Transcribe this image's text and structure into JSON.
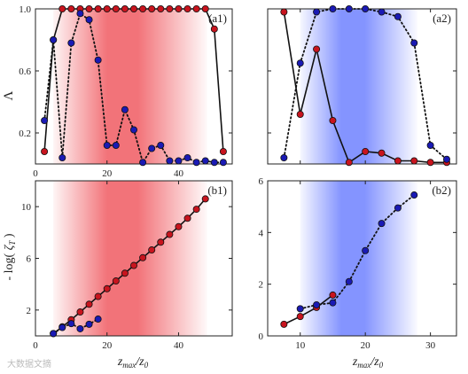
{
  "chart_data": [
    {
      "id": "a1",
      "type": "line",
      "panel_label": "(a1)",
      "ylabel": "Λ",
      "xlim": [
        0,
        55
      ],
      "ylim": [
        0,
        1.0
      ],
      "xticks": [
        0,
        20,
        40
      ],
      "yticks": [
        0.2,
        0.6,
        1.0
      ],
      "ytick_labels": [
        "0.2",
        "0.6",
        "1.0"
      ],
      "show_xtick_labels": true,
      "show_ytick_labels": true,
      "shade": {
        "color": "#e8000b",
        "from": 5,
        "to": 48
      },
      "series": [
        {
          "color": "#c8141e",
          "style": "solid",
          "x": [
            2.5,
            5,
            7.5,
            10,
            12.5,
            15,
            17.5,
            20,
            22.5,
            25,
            27.5,
            30,
            32.5,
            35,
            37.5,
            40,
            42.5,
            45,
            47.5,
            50,
            52.5
          ],
          "y": [
            0.08,
            0.8,
            1.0,
            1.0,
            1.0,
            1.0,
            1.0,
            1.0,
            1.0,
            1.0,
            1.0,
            1.0,
            1.0,
            1.0,
            1.0,
            1.0,
            1.0,
            1.0,
            1.0,
            0.87,
            0.08
          ]
        },
        {
          "color": "#1a1ab4",
          "style": "dotted",
          "x": [
            2.5,
            5,
            7.5,
            10,
            12.5,
            15,
            17.5,
            20,
            22.5,
            25,
            27.5,
            30,
            32.5,
            35,
            37.5,
            40,
            42.5,
            45,
            47.5,
            50,
            52.5
          ],
          "y": [
            0.28,
            0.8,
            0.04,
            0.78,
            0.97,
            0.93,
            0.67,
            0.12,
            0.12,
            0.35,
            0.22,
            0.01,
            0.1,
            0.12,
            0.02,
            0.02,
            0.04,
            0.01,
            0.02,
            0.01,
            0.01
          ]
        }
      ]
    },
    {
      "id": "a2",
      "type": "line",
      "panel_label": "(a2)",
      "ylabel": "",
      "xlim": [
        5,
        34
      ],
      "ylim": [
        0,
        1.0
      ],
      "xticks": [
        10,
        20,
        30
      ],
      "yticks": [
        0.2,
        0.6,
        1.0
      ],
      "ytick_labels": [
        "",
        "",
        ""
      ],
      "show_xtick_labels": false,
      "show_ytick_labels": false,
      "shade": {
        "color": "#1f3cff",
        "from": 10,
        "to": 28
      },
      "series": [
        {
          "color": "#c8141e",
          "style": "solid",
          "x": [
            7.5,
            10,
            12.5,
            15,
            17.5,
            20,
            22.5,
            25,
            27.5,
            30,
            32.5
          ],
          "y": [
            0.98,
            0.32,
            0.74,
            0.28,
            0.01,
            0.08,
            0.07,
            0.02,
            0.02,
            0.01,
            0.01
          ]
        },
        {
          "color": "#1a1ab4",
          "style": "dotted",
          "x": [
            7.5,
            10,
            12.5,
            15,
            17.5,
            20,
            22.5,
            25,
            27.5,
            30,
            32.5
          ],
          "y": [
            0.04,
            0.65,
            0.98,
            1.0,
            1.0,
            1.0,
            0.98,
            0.95,
            0.78,
            0.12,
            0.03
          ]
        }
      ]
    },
    {
      "id": "b1",
      "type": "line",
      "panel_label": "(b1)",
      "ylabel": "- log( ζT )",
      "xlim": [
        0,
        55
      ],
      "ylim": [
        0,
        12
      ],
      "xticks": [
        0,
        20,
        40
      ],
      "yticks": [
        2,
        6,
        10
      ],
      "ytick_labels": [
        "2",
        "6",
        "10"
      ],
      "show_xtick_labels": true,
      "show_ytick_labels": true,
      "xlabel": "z max / z 0",
      "shade": {
        "color": "#e8000b",
        "from": 5,
        "to": 48
      },
      "series": [
        {
          "color": "#c8141e",
          "style": "solid",
          "x": [
            5,
            7.5,
            10,
            12.5,
            15,
            17.5,
            20,
            22.5,
            25,
            27.5,
            30,
            32.5,
            35,
            37.5,
            40,
            42.5,
            45,
            47.5
          ],
          "y": [
            0.18,
            0.7,
            1.25,
            1.85,
            2.45,
            3.05,
            3.65,
            4.25,
            4.85,
            5.45,
            6.05,
            6.65,
            7.25,
            7.85,
            8.45,
            9.1,
            9.8,
            10.6
          ]
        },
        {
          "color": "#1a1ab4",
          "style": "dotted",
          "x": [
            5,
            7.5,
            10,
            12.5,
            15,
            17.5
          ],
          "y": [
            0.18,
            0.65,
            0.95,
            0.55,
            0.9,
            1.3
          ]
        }
      ]
    },
    {
      "id": "b2",
      "type": "line",
      "panel_label": "(b2)",
      "ylabel": "",
      "xlim": [
        5,
        34
      ],
      "ylim": [
        0,
        6
      ],
      "xticks": [
        10,
        20,
        30
      ],
      "yticks": [
        0,
        2,
        4,
        6
      ],
      "ytick_labels": [
        "0",
        "2",
        "4",
        "6"
      ],
      "show_xtick_labels": true,
      "show_ytick_labels": true,
      "xlabel": "z max / z 0",
      "shade": {
        "color": "#1f3cff",
        "from": 10,
        "to": 28
      },
      "series": [
        {
          "color": "#c8141e",
          "style": "solid",
          "x": [
            7.5,
            10,
            12.5,
            15
          ],
          "y": [
            0.45,
            0.75,
            1.1,
            1.58
          ]
        },
        {
          "color": "#1a1ab4",
          "style": "dotted",
          "x": [
            10,
            12.5,
            15,
            17.5,
            20,
            22.5,
            25,
            27.5
          ],
          "y": [
            1.05,
            1.2,
            1.28,
            2.1,
            3.3,
            4.35,
            4.95,
            5.45
          ]
        }
      ]
    }
  ],
  "watermark": "大数据文摘"
}
